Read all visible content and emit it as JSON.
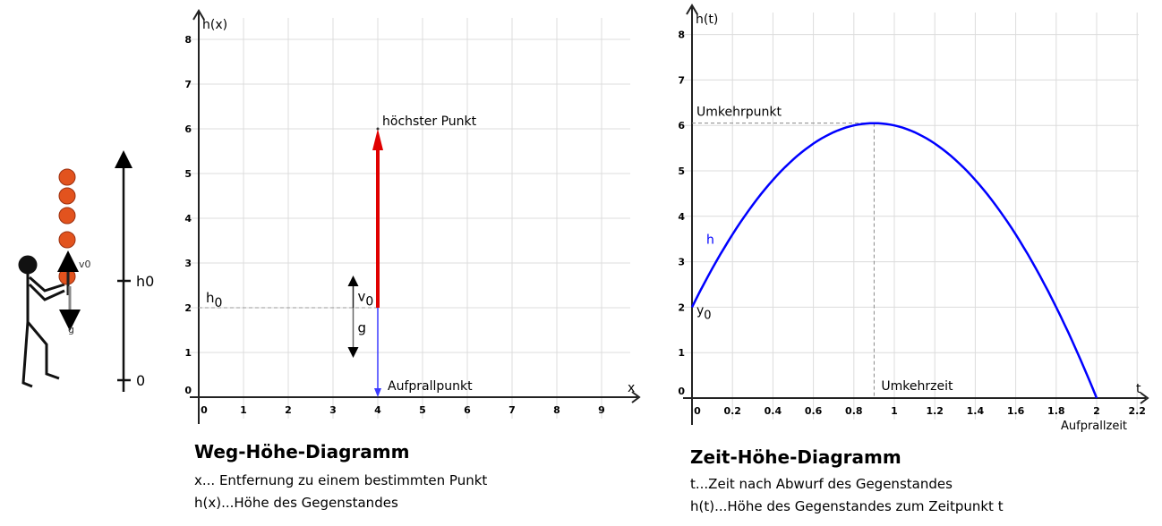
{
  "illustration": {
    "v0_label": "v0",
    "g_label": "g",
    "h0_label": "h0",
    "zero_label": "0"
  },
  "chart_data": [
    {
      "type": "line",
      "id": "weg",
      "xlabel": "x",
      "ylabel": "h(x)",
      "xlim": [
        0,
        9
      ],
      "ylim": [
        0,
        8
      ],
      "xticks": [
        0,
        1,
        2,
        3,
        4,
        5,
        6,
        7,
        8,
        9
      ],
      "yticks": [
        0,
        1,
        2,
        3,
        4,
        5,
        6,
        7,
        8
      ],
      "grid": true,
      "annotations": {
        "top": "höchster Punkt",
        "h0": "h",
        "h0_sub": "0",
        "v0": "v",
        "v0_sub": "0",
        "g": "g",
        "impact": "Aufprallpunkt"
      },
      "up_segment": {
        "x": 4,
        "from": 2,
        "to": 6,
        "color": "#e00000"
      },
      "down_segment": {
        "x": 4,
        "from": 2,
        "to": 0,
        "color": "#3a3aff"
      },
      "h0": 2
    },
    {
      "type": "line",
      "id": "zeit",
      "xlabel": "t",
      "ylabel": "h(t)",
      "xlim": [
        0,
        2.2
      ],
      "ylim": [
        0,
        8
      ],
      "xticks": [
        "0",
        "0.2",
        "0.4",
        "0.6",
        "0.8",
        "1",
        "1.2",
        "1.4",
        "1.6",
        "1.8",
        "2",
        "2.2"
      ],
      "yticks": [
        0,
        1,
        2,
        3,
        4,
        5,
        6,
        7,
        8
      ],
      "grid": true,
      "series": [
        {
          "name": "h",
          "formula": "h(t)=2+9t-5t^2",
          "color": "#0000ff",
          "t_range": [
            0,
            2
          ]
        }
      ],
      "peak": {
        "t": 0.9,
        "h": 6.05
      },
      "annotations": {
        "peak": "Umkehrpunkt",
        "peak_time": "Umkehrzeit",
        "impact": "Aufprallzeit",
        "y0": "y",
        "y0_sub": "0",
        "curve": "h"
      }
    }
  ],
  "captions": {
    "weg_title": "Weg-Höhe-Diagramm",
    "weg_line1": "x... Entfernung zu einem bestimmten Punkt",
    "weg_line2": "h(x)...Höhe des Gegenstandes",
    "zeit_title": "Zeit-Höhe-Diagramm",
    "zeit_line1": "t...Zeit nach Abwurf des Gegenstandes",
    "zeit_line2": "h(t)...Höhe des Gegenstandes zum Zeitpunkt t"
  }
}
